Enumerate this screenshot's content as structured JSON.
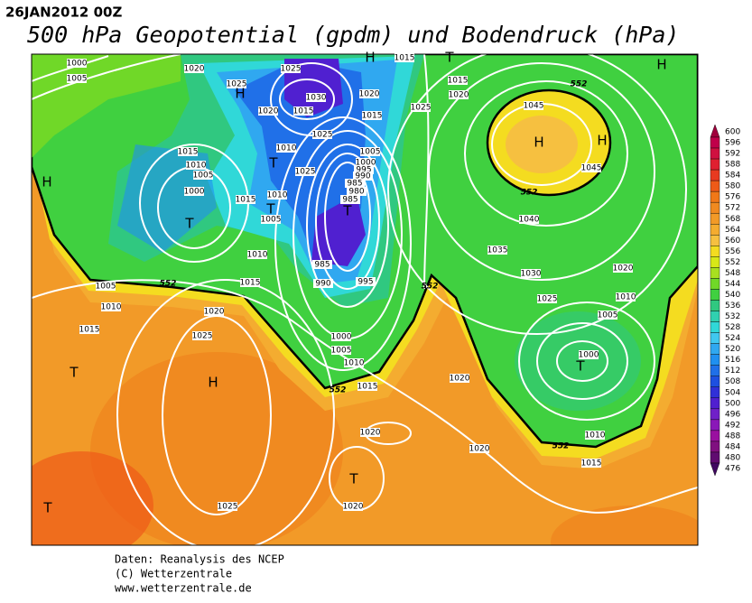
{
  "header": {
    "date": "26JAN2012 00Z",
    "title": "500 hPa Geopotential (gpdm) und Bodendruck (hPa)"
  },
  "colorbar": {
    "levels": [
      600,
      596,
      592,
      588,
      584,
      580,
      576,
      572,
      568,
      564,
      560,
      556,
      552,
      548,
      544,
      540,
      536,
      532,
      528,
      524,
      520,
      516,
      512,
      508,
      504,
      500,
      496,
      492,
      488,
      484,
      480,
      476
    ],
    "colors": [
      "#a0003c",
      "#c0004a",
      "#d01040",
      "#e02030",
      "#e83a20",
      "#ee5a18",
      "#f07818",
      "#f08a20",
      "#f29a28",
      "#f4ac30",
      "#f6c040",
      "#f4dc20",
      "#d8e818",
      "#a8e020",
      "#70d828",
      "#40d040",
      "#30c880",
      "#30d0b0",
      "#30d8d8",
      "#40c8f0",
      "#30a8f0",
      "#2090f0",
      "#2070e8",
      "#1e50e0",
      "#3030d8",
      "#5020d0",
      "#7020c8",
      "#8a18b8",
      "#9a10a0",
      "#801080",
      "#600c70",
      "#400860"
    ]
  },
  "map": {
    "isobar_labels": [
      "1000",
      "1005",
      "1020",
      "1025",
      "1025",
      "1030",
      "1020",
      "1015",
      "1025",
      "1020",
      "1015",
      "1025",
      "1015",
      "1020",
      "1045",
      "1045",
      "1040",
      "1035",
      "1030",
      "1025",
      "1020",
      "1010",
      "1005",
      "1000",
      "1015",
      "1010",
      "1005",
      "1000",
      "1010",
      "1010",
      "1005",
      "1015",
      "1025",
      "1005",
      "1000",
      "995",
      "990",
      "985",
      "980",
      "985",
      "985",
      "990",
      "995",
      "1010",
      "1015",
      "1005",
      "1010",
      "1015",
      "1020",
      "1025",
      "1000",
      "1005",
      "1010",
      "1015",
      "1020",
      "1020",
      "1020",
      "1015",
      "1010",
      "1025",
      "1020",
      "1015"
    ],
    "contour_552_labels": [
      "552",
      "552",
      "552",
      "552",
      "552",
      "552"
    ],
    "centers": [
      "H",
      "H",
      "T",
      "T",
      "T",
      "T",
      "H",
      "T",
      "H",
      "H",
      "H",
      "T",
      "H",
      "T",
      "T",
      "T"
    ]
  },
  "footer": {
    "lines": [
      "Daten: Reanalysis des NCEP",
      "(C) Wetterzentrale",
      "www.wetterzentrale.de"
    ]
  }
}
